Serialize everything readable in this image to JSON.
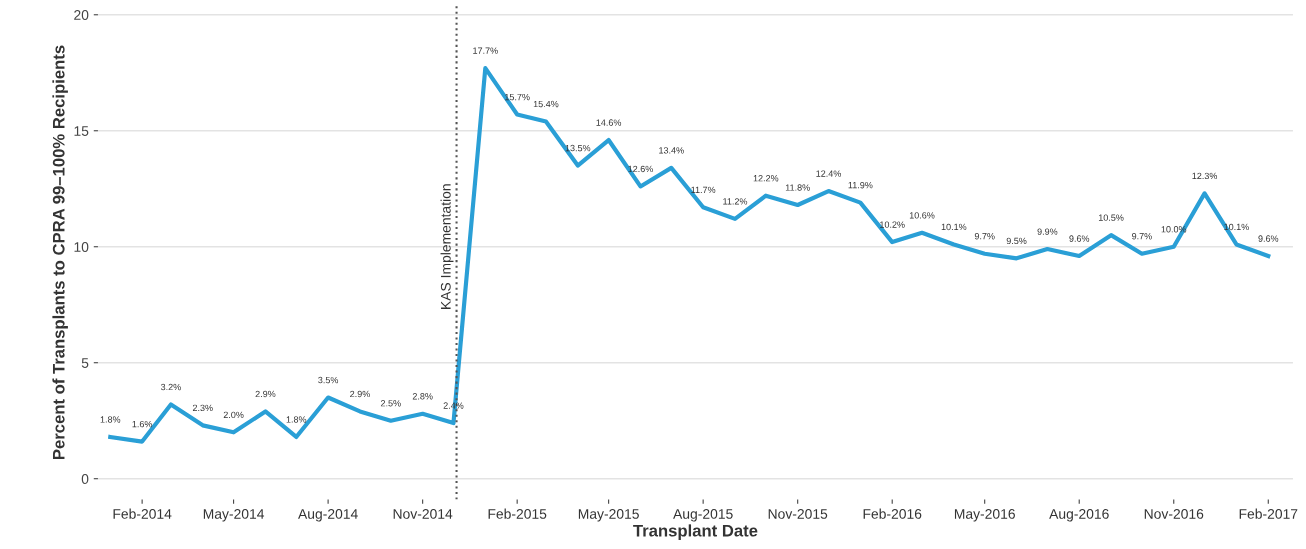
{
  "chart_data": {
    "type": "line",
    "xlabel": "Transplant Date",
    "ylabel": "Percent of Transplants to CPRA 99–100% Recipients",
    "x": [
      "2014-01-01",
      "2014-02-01",
      "2014-03-01",
      "2014-04-01",
      "2014-05-01",
      "2014-06-01",
      "2014-07-01",
      "2014-08-01",
      "2014-09-01",
      "2014-10-01",
      "2014-11-01",
      "2014-12-01",
      "2015-01-01",
      "2015-02-01",
      "2015-03-01",
      "2015-04-01",
      "2015-05-01",
      "2015-06-01",
      "2015-07-01",
      "2015-08-01",
      "2015-09-01",
      "2015-10-01",
      "2015-11-01",
      "2015-12-01",
      "2016-01-01",
      "2016-02-01",
      "2016-03-01",
      "2016-04-01",
      "2016-05-01",
      "2016-06-01",
      "2016-07-01",
      "2016-08-01",
      "2016-09-01",
      "2016-10-01",
      "2016-11-01",
      "2016-12-01",
      "2017-01-01",
      "2017-02-01"
    ],
    "series": [
      {
        "color": "#2a9fd6",
        "values": [
          1.8,
          1.6,
          3.2,
          2.3,
          2.0,
          2.9,
          1.8,
          3.5,
          2.9,
          2.5,
          2.8,
          2.4,
          17.7,
          15.7,
          15.4,
          13.5,
          14.6,
          12.6,
          13.4,
          11.7,
          11.2,
          12.2,
          11.8,
          12.4,
          11.9,
          10.2,
          10.6,
          10.1,
          9.7,
          9.5,
          9.9,
          9.6,
          10.5,
          9.7,
          10.0,
          12.3,
          10.1,
          9.6
        ],
        "value_labels": [
          "1.8%",
          "1.6%",
          "3.2%",
          "2.3%",
          "2.0%",
          "2.9%",
          "1.8%",
          "3.5%",
          "2.9%",
          "2.5%",
          "2.8%",
          "2.4%",
          "17.7%",
          "15.7%",
          "15.4%",
          "13.5%",
          "14.6%",
          "12.6%",
          "13.4%",
          "11.7%",
          "11.2%",
          "12.2%",
          "11.8%",
          "12.4%",
          "11.9%",
          "10.2%",
          "10.6%",
          "10.1%",
          "9.7%",
          "9.5%",
          "9.9%",
          "9.6%",
          "10.5%",
          "9.7%",
          "10.0%",
          "12.3%",
          "10.1%",
          "9.6%"
        ]
      }
    ],
    "xlim": [
      "2013-12-20",
      "2017-02-25"
    ],
    "xticks": [
      {
        "value": "2014-02-01",
        "label": "Feb-2014"
      },
      {
        "value": "2014-05-01",
        "label": "May-2014"
      },
      {
        "value": "2014-08-01",
        "label": "Aug-2014"
      },
      {
        "value": "2014-11-01",
        "label": "Nov-2014"
      },
      {
        "value": "2015-02-01",
        "label": "Feb-2015"
      },
      {
        "value": "2015-05-01",
        "label": "May-2015"
      },
      {
        "value": "2015-08-01",
        "label": "Aug-2015"
      },
      {
        "value": "2015-11-01",
        "label": "Nov-2015"
      },
      {
        "value": "2016-02-01",
        "label": "Feb-2016"
      },
      {
        "value": "2016-05-01",
        "label": "May-2016"
      },
      {
        "value": "2016-08-01",
        "label": "Aug-2016"
      },
      {
        "value": "2016-11-01",
        "label": "Nov-2016"
      },
      {
        "value": "2017-02-01",
        "label": "Feb-2017"
      }
    ],
    "ylim": [
      -0.9,
      20.4
    ],
    "yticks": [
      0,
      5,
      10,
      15,
      20
    ],
    "grid": "y",
    "marker": "none",
    "line_style": "solid",
    "ref_lines": [
      {
        "axis": "x",
        "value": "2014-12-04",
        "label": "KAS Implementation",
        "color": "#555555",
        "line_style": "dotted"
      }
    ]
  }
}
